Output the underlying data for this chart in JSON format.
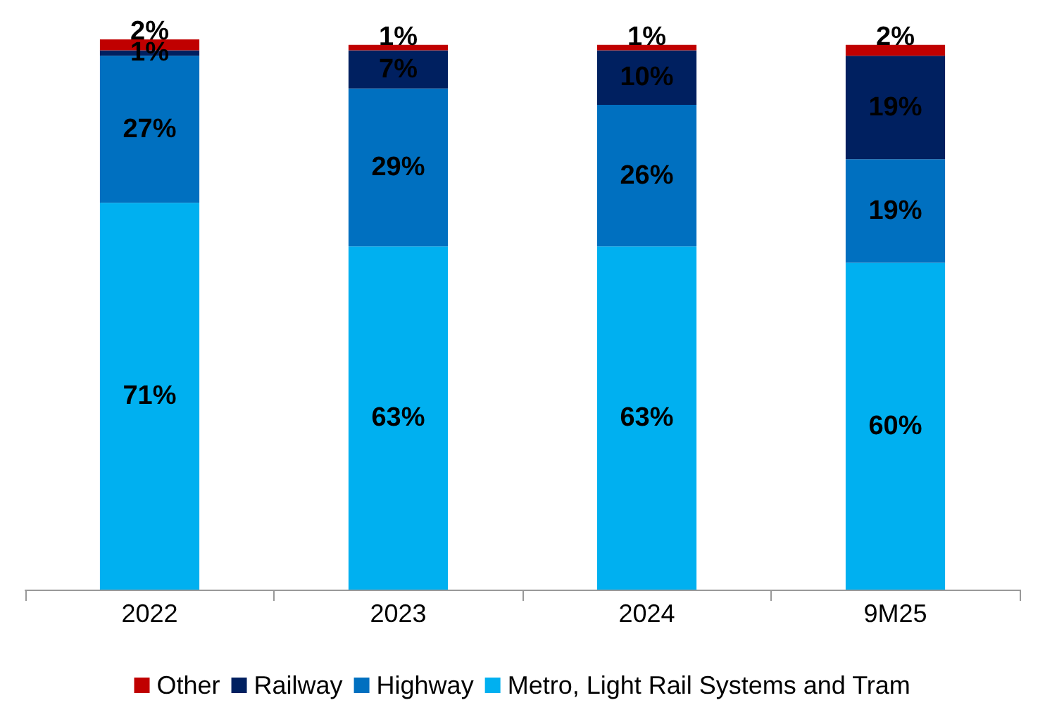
{
  "chart_data": {
    "type": "bar",
    "stacked": true,
    "categories": [
      "2022",
      "2023",
      "2024",
      "9M25"
    ],
    "series": [
      {
        "name": "Metro, Light Rail Systems and Tram",
        "color": "#00b0f0",
        "values": [
          71,
          63,
          63,
          60
        ],
        "value_labels": [
          "71%",
          "63%",
          "63%",
          "60%"
        ]
      },
      {
        "name": "Highway",
        "color": "#0070c0",
        "values": [
          27,
          29,
          26,
          19
        ],
        "value_labels": [
          "27%",
          "29%",
          "26%",
          "19%"
        ]
      },
      {
        "name": "Railway",
        "color": "#002060",
        "values": [
          1,
          7,
          10,
          19
        ],
        "value_labels": [
          "1%",
          "7%",
          "10%",
          "19%"
        ]
      },
      {
        "name": "Other",
        "color": "#c00000",
        "values": [
          2,
          1,
          1,
          2
        ],
        "value_labels": [
          "2%",
          "1%",
          "1%",
          "2%"
        ]
      }
    ],
    "legend": "bottom"
  }
}
